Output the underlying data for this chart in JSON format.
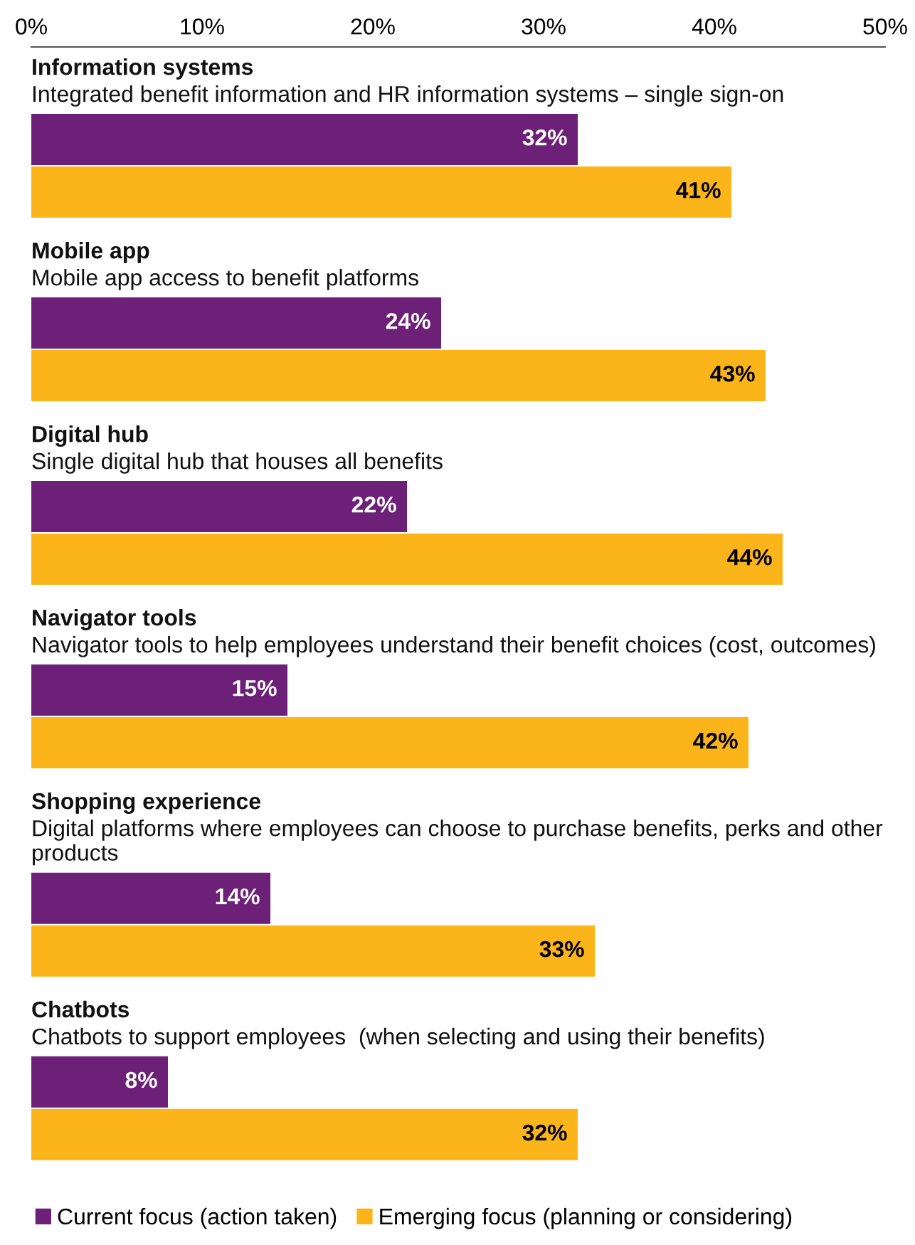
{
  "chart_data": {
    "type": "bar",
    "orientation": "horizontal",
    "categories": [
      "Information systems\nIntegrated benefit information and HR information systems – single sign-on",
      "Mobile app\nMobile app access to benefit platforms",
      "Digital hub\nSingle digital hub that houses all benefits",
      "Navigator tools\nNavigator tools to help employees understand their benefit choices (cost, outcomes)",
      "Shopping experience\nDigital platforms where employees can choose to purchase benefits, perks and other products",
      "Chatbots\nChatbots to support employees  (when selecting and using their benefits)"
    ],
    "series": [
      {
        "name": "Current focus (action taken)",
        "color": "#6d2077",
        "values": [
          32,
          24,
          22,
          15,
          14,
          8
        ],
        "value_labels": [
          "32%",
          "24%",
          "22%",
          "15%",
          "14%",
          "8%"
        ]
      },
      {
        "name": "Emerging focus (planning or considering)",
        "color": "#fbb51b",
        "values": [
          41,
          43,
          44,
          42,
          33,
          32
        ],
        "value_labels": [
          "41%",
          "43%",
          "44%",
          "42%",
          "33%",
          "32%"
        ]
      }
    ],
    "xlim": [
      0,
      50
    ],
    "xticks": [
      {
        "value": 0,
        "label": "0%"
      },
      {
        "value": 10,
        "label": "10%"
      },
      {
        "value": 20,
        "label": "20%"
      },
      {
        "value": 30,
        "label": "30%"
      },
      {
        "value": 40,
        "label": "40%"
      },
      {
        "value": 50,
        "label": "50%"
      }
    ],
    "grid": false,
    "legend": "bottom"
  }
}
